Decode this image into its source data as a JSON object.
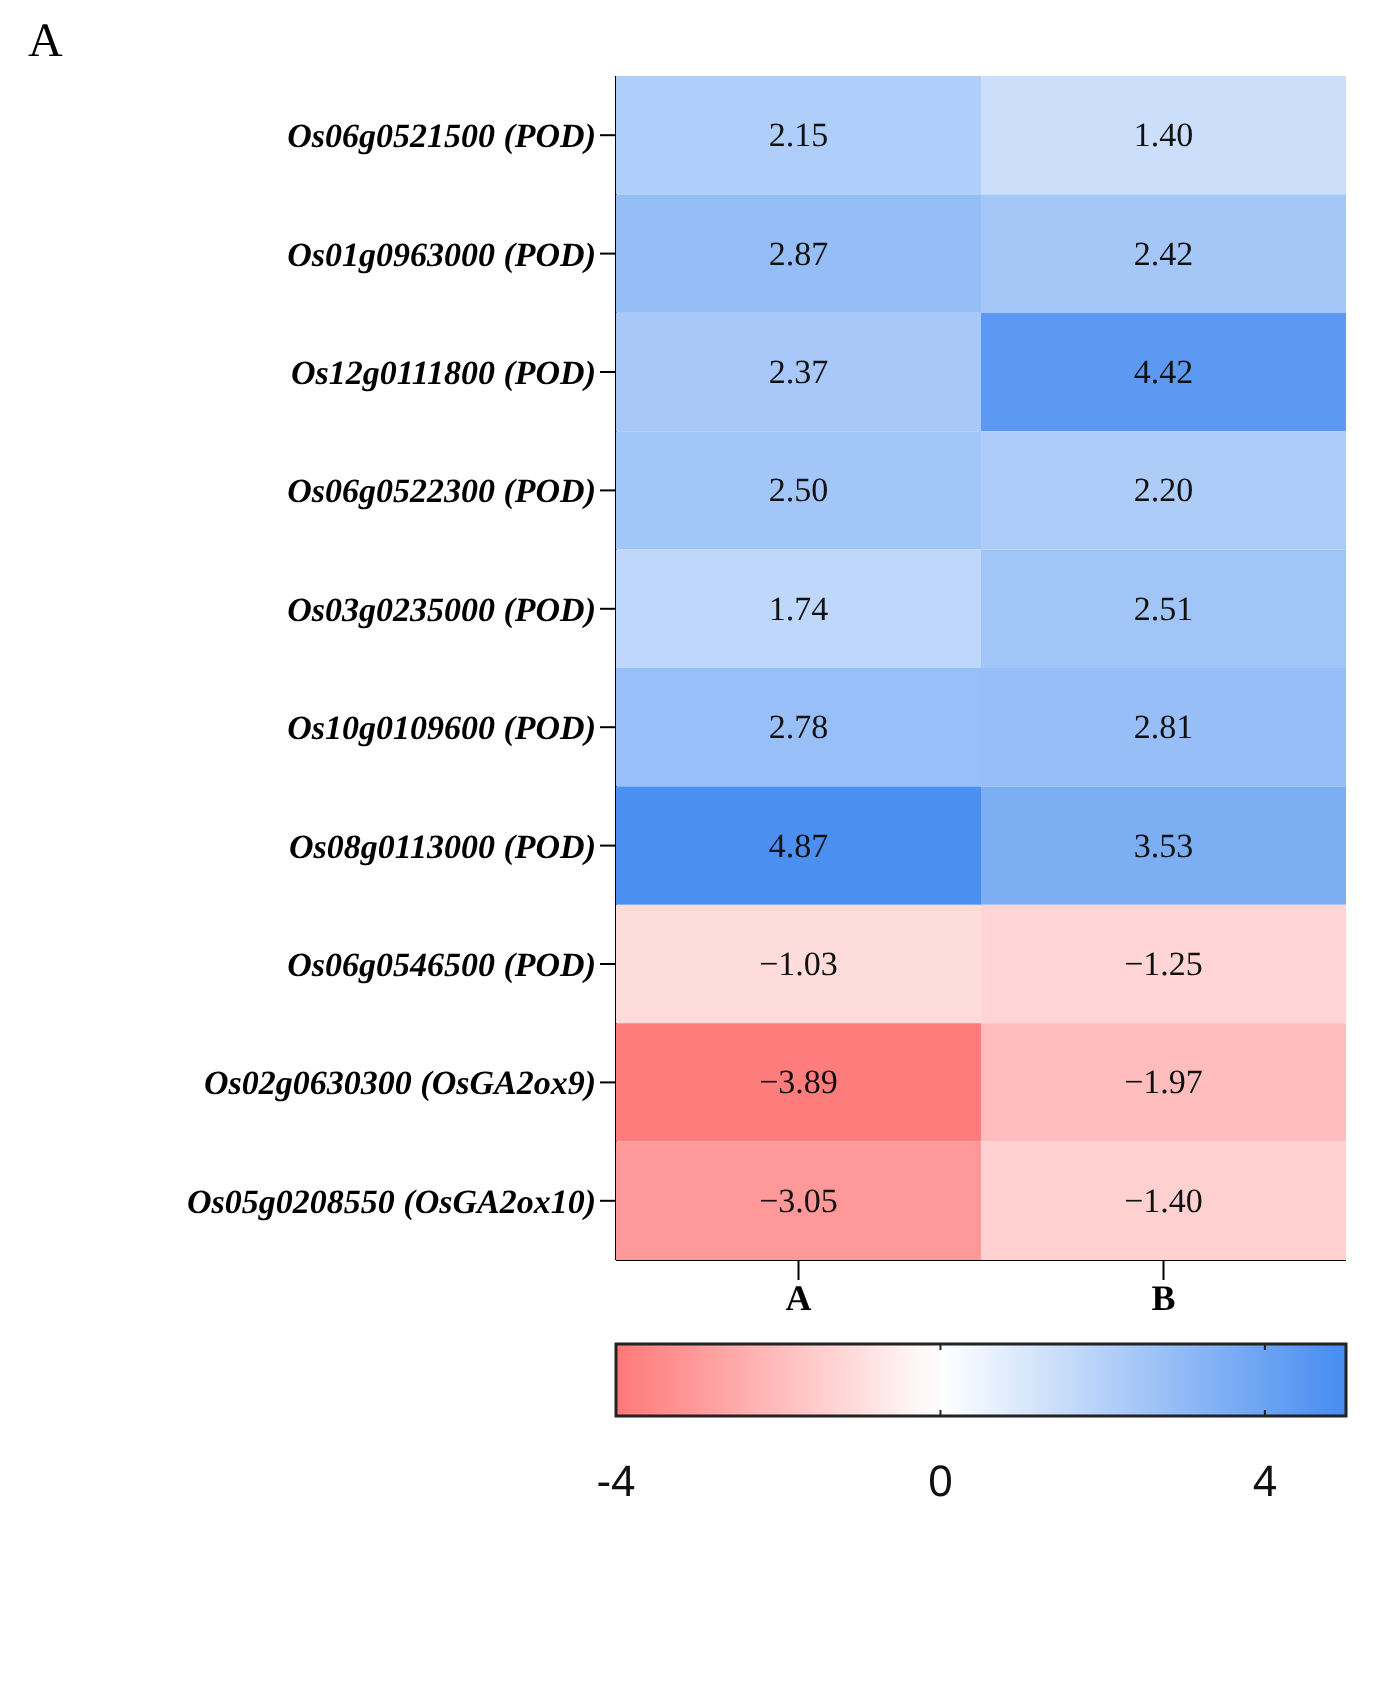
{
  "chart_data": {
    "type": "heatmap",
    "title": "A",
    "categories": [
      "A",
      "B"
    ],
    "y_categories": [
      "Os06g0521500 (POD)",
      "Os01g0963000 (POD)",
      "Os12g0111800 (POD)",
      "Os06g0522300 (POD)",
      "Os03g0235000 (POD)",
      "Os10g0109600 (POD)",
      "Os08g0113000 (POD)",
      "Os06g0546500 (POD)",
      "Os02g0630300 (OsGA2ox9)",
      "Os05g0208550 (OsGA2ox10)"
    ],
    "cells": [
      [
        2.15,
        1.4
      ],
      [
        2.87,
        2.42
      ],
      [
        2.37,
        4.42
      ],
      [
        2.5,
        2.2
      ],
      [
        1.74,
        2.51
      ],
      [
        2.78,
        2.81
      ],
      [
        4.87,
        3.53
      ],
      [
        -1.03,
        -1.25
      ],
      [
        -3.89,
        -1.97
      ],
      [
        -3.05,
        -1.4
      ]
    ],
    "cell_labels": [
      [
        "2.15",
        "1.40"
      ],
      [
        "2.87",
        "2.42"
      ],
      [
        "2.37",
        "4.42"
      ],
      [
        "2.50",
        "2.20"
      ],
      [
        "1.74",
        "2.51"
      ],
      [
        "2.78",
        "2.81"
      ],
      [
        "4.87",
        "3.53"
      ],
      [
        "−1.03",
        "−1.25"
      ],
      [
        "−3.89",
        "−1.97"
      ],
      [
        "−3.05",
        "−1.40"
      ]
    ],
    "clim": [
      -4,
      5
    ],
    "cticks": [
      -4,
      0,
      4
    ]
  }
}
